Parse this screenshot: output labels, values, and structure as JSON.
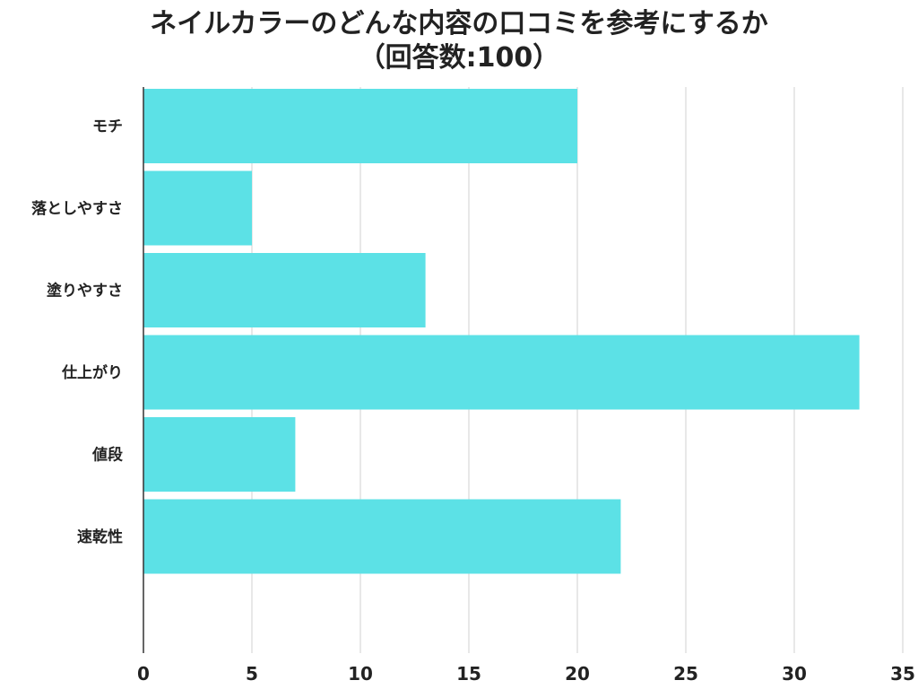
{
  "chart_data": {
    "type": "bar",
    "orientation": "horizontal",
    "title": "ネイルカラーのどんな内容の口コミを参考にするか",
    "subtitle": "（回答数:100）",
    "categories": [
      "モチ",
      "落としやすさ",
      "塗りやすさ",
      "仕上がり",
      "値段",
      "速乾性"
    ],
    "values": [
      20,
      5,
      13,
      33,
      7,
      22
    ],
    "xlim": [
      0,
      35
    ],
    "xticks": [
      0,
      5,
      10,
      15,
      20,
      25,
      30,
      35
    ],
    "grid": "vertical",
    "legend": "none",
    "colors": {
      "bar": "#5ce1e6",
      "grid": "#d9d9d9",
      "axis": "#333333",
      "text": "#222222"
    }
  }
}
